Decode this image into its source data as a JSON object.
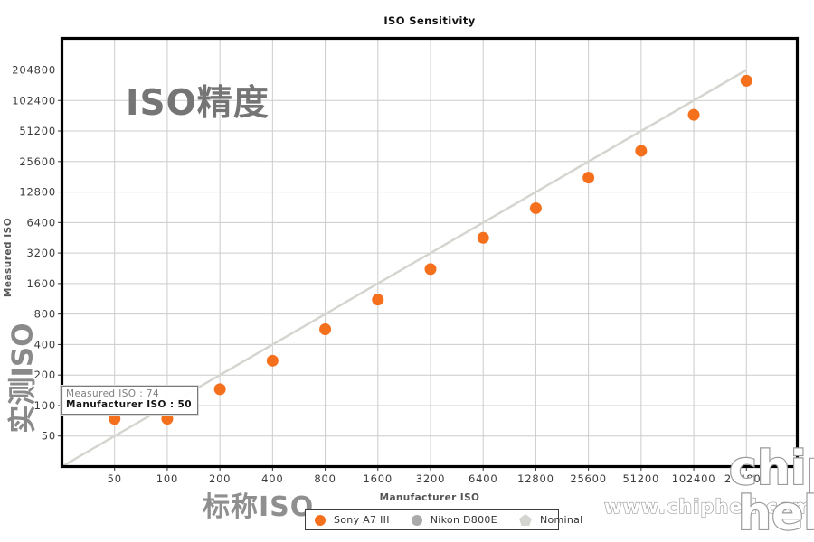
{
  "title": "ISO Sensitivity",
  "watermarks": {
    "plot_label": "ISO精度",
    "y_axis_label": "实测ISO",
    "x_axis_label": "标称ISO",
    "site_url": "www.chiphell.com",
    "logo_top": "chip",
    "logo_bottom": "hell"
  },
  "tooltip": {
    "line1": "Measured ISO : 74",
    "line2": "Manufacturer ISO : 50"
  },
  "chart_data": {
    "type": "scatter",
    "title": "ISO Sensitivity",
    "xlabel": "Manufacturer ISO",
    "ylabel": "Measured ISO",
    "x_scale": "log2",
    "y_scale": "log2",
    "grid": true,
    "legend_position": "bottom",
    "xlim": [
      25,
      400000
    ],
    "ylim": [
      25,
      420000
    ],
    "x_ticks": [
      50,
      100,
      200,
      400,
      800,
      1600,
      3200,
      6400,
      12800,
      25600,
      51200,
      102400,
      204800
    ],
    "y_ticks": [
      50,
      100,
      200,
      400,
      800,
      1600,
      3200,
      6400,
      12800,
      25600,
      51200,
      102400,
      204800
    ],
    "grid_color": "#cccccc",
    "series": [
      {
        "name": "Sony A7 III",
        "marker": "circle",
        "color": "#f4701d",
        "x": [
          50,
          100,
          200,
          400,
          800,
          1600,
          3200,
          6400,
          12800,
          25600,
          51200,
          102400,
          204800
        ],
        "y": [
          74,
          74,
          145,
          277,
          566,
          1110,
          2220,
          4520,
          8870,
          17740,
          32650,
          73900,
          160500
        ]
      },
      {
        "name": "Nikon D800E",
        "marker": "circle",
        "color": "#aaaaaa",
        "x": [],
        "y": []
      },
      {
        "name": "Nominal",
        "marker": "pentagon",
        "color": "#d5d5d0",
        "line": true,
        "extends_to_axis_min": true,
        "x": [
          50,
          204800
        ],
        "y": [
          50,
          204800
        ]
      }
    ]
  }
}
